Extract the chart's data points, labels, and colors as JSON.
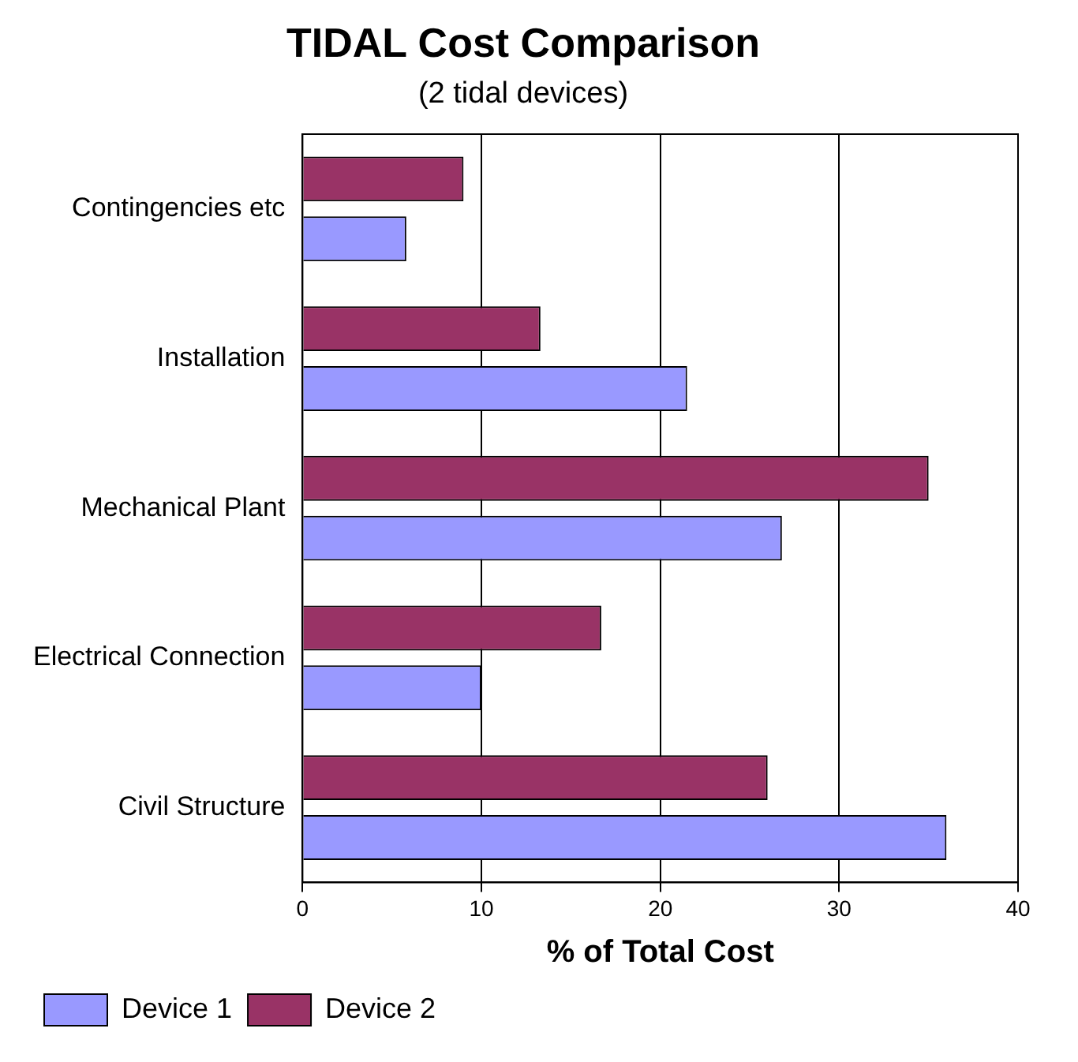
{
  "chart_data": {
    "type": "bar",
    "orientation": "horizontal",
    "title": "TIDAL Cost Comparison",
    "subtitle": "(2 tidal devices)",
    "xlabel": "% of Total Cost",
    "categories": [
      "Contingencies etc",
      "Installation",
      "Mechanical Plant",
      "Electrical Connection",
      "Civil Structure"
    ],
    "series": [
      {
        "name": "Device 1",
        "color": "#9999ff",
        "values": [
          5.8,
          21.5,
          26.8,
          10,
          36
        ]
      },
      {
        "name": "Device 2",
        "color": "#993366",
        "values": [
          9,
          13.3,
          35,
          16.7,
          26
        ]
      }
    ],
    "xlim": [
      0,
      40
    ],
    "xticks": [
      0,
      10,
      20,
      30,
      40
    ],
    "grid": "x",
    "legend": "bottom"
  }
}
